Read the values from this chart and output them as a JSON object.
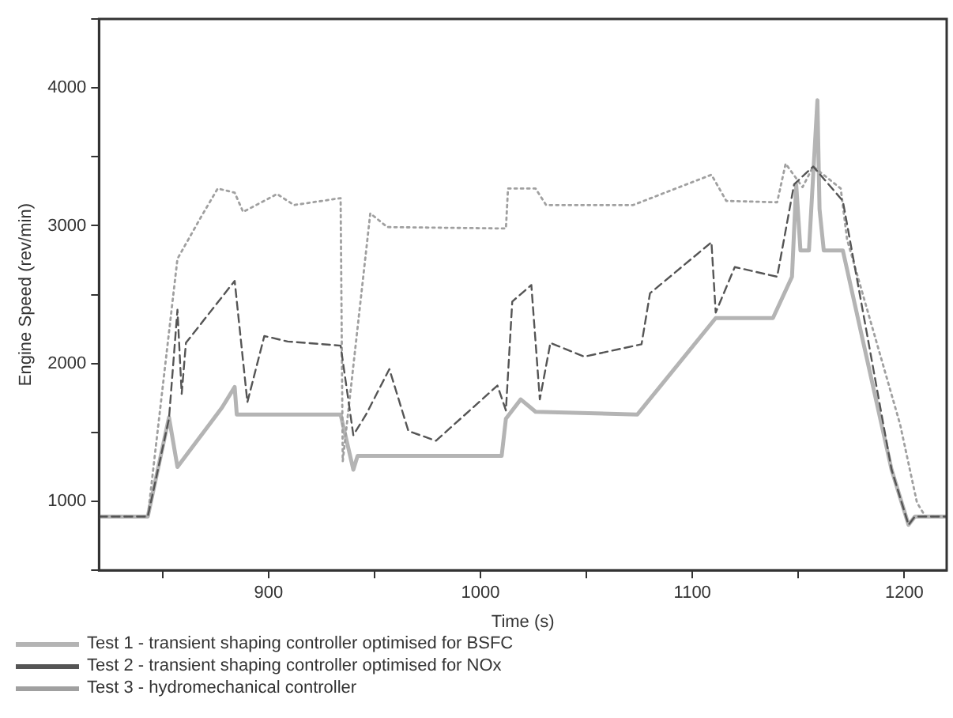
{
  "chart_data": {
    "type": "line",
    "xlabel": "Time (s)",
    "ylabel": "Engine Speed (rev/min)",
    "xlim": [
      820,
      1220
    ],
    "ylim": [
      500,
      4500
    ],
    "xticks": [
      {
        "value": 850,
        "label": null
      },
      900,
      {
        "value": 950,
        "label": null
      },
      1000,
      {
        "value": 1050,
        "label": null
      },
      1100,
      {
        "value": 1150,
        "label": null
      },
      1200
    ],
    "yticks": [
      {
        "value": 500,
        "label": null
      },
      1000,
      {
        "value": 1500,
        "label": null
      },
      2000,
      {
        "value": 2500,
        "label": null
      },
      3000,
      {
        "value": 3500,
        "label": null
      },
      4000,
      {
        "value": 4500,
        "label": null
      }
    ],
    "grid": false,
    "legend": "bottom",
    "marker": "none",
    "series": [
      {
        "name": "Test 1 - transient shaping controller optimised for BSFC",
        "color": "#b4b4b4",
        "line_style": "solid",
        "x": [
          820,
          843,
          853,
          857,
          878,
          884,
          885,
          934,
          940,
          942,
          1010,
          1012,
          1019,
          1026,
          1074,
          1111,
          1138,
          1147,
          1149,
          1151,
          1155,
          1159,
          1160,
          1162,
          1171,
          1194,
          1202,
          1205,
          1220
        ],
        "values": [
          890,
          890,
          1610,
          1250,
          1680,
          1830,
          1630,
          1630,
          1230,
          1330,
          1330,
          1600,
          1740,
          1650,
          1630,
          2330,
          2330,
          2630,
          3300,
          2820,
          2820,
          3910,
          3120,
          2820,
          2820,
          1230,
          830,
          890,
          890
        ]
      },
      {
        "name": "Test 2 - transient shaping controller optimised for NOx",
        "color": "#555555",
        "line_style": "dashed",
        "x": [
          820,
          843,
          853,
          857,
          859,
          861,
          884,
          890,
          898,
          909,
          934,
          940,
          946,
          957,
          966,
          979,
          1008,
          1012,
          1015,
          1024,
          1028,
          1033,
          1049,
          1076,
          1080,
          1109,
          1111,
          1120,
          1140,
          1148,
          1157,
          1171,
          1194,
          1202,
          1205,
          1220
        ],
        "values": [
          890,
          890,
          1600,
          2390,
          1780,
          2150,
          2600,
          1720,
          2200,
          2160,
          2130,
          1480,
          1630,
          1960,
          1510,
          1440,
          1840,
          1660,
          2450,
          2570,
          1740,
          2150,
          2050,
          2140,
          2510,
          2880,
          2370,
          2700,
          2630,
          3300,
          3430,
          3180,
          1230,
          830,
          890,
          890
        ]
      },
      {
        "name": "Test 3 - hydromechanical controller",
        "color": "#a0a0a0",
        "line_style": "dotted",
        "x": [
          820,
          843,
          857,
          868,
          876,
          884,
          888,
          904,
          912,
          934,
          935,
          948,
          956,
          1012,
          1013,
          1026,
          1031,
          1072,
          1109,
          1116,
          1140,
          1144,
          1152,
          1157,
          1170,
          1173,
          1198,
          1206,
          1210,
          1220
        ],
        "values": [
          890,
          890,
          2760,
          3060,
          3270,
          3240,
          3100,
          3230,
          3150,
          3200,
          1290,
          3090,
          2990,
          2980,
          3270,
          3270,
          3150,
          3150,
          3370,
          3180,
          3170,
          3450,
          3280,
          3430,
          3270,
          2900,
          1560,
          990,
          890,
          890
        ]
      }
    ]
  }
}
